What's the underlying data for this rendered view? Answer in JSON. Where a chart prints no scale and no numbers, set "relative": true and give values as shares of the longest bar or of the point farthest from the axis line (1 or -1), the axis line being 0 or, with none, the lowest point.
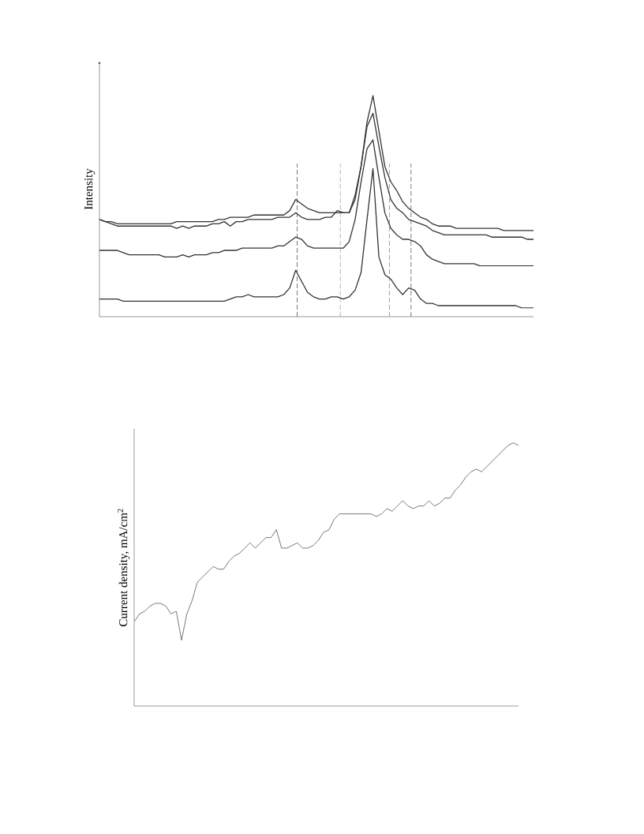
{
  "chart_data": [
    {
      "type": "line",
      "ylabel": "Intensity",
      "relative": true,
      "categories": [
        null,
        null,
        null,
        null,
        null,
        null,
        null,
        null,
        null,
        null,
        null,
        null,
        null,
        null,
        null,
        null,
        null,
        null,
        null,
        null,
        null,
        null,
        null,
        null,
        null,
        null,
        null,
        null,
        null,
        null,
        null,
        null,
        null,
        null,
        null,
        null,
        null,
        null,
        null,
        null,
        null,
        null,
        null,
        null,
        null,
        null,
        null,
        null,
        null,
        null,
        null,
        null,
        null,
        null,
        null,
        null,
        null,
        null,
        null,
        null,
        null,
        null,
        null,
        null,
        null,
        null,
        null,
        null,
        null,
        null,
        null,
        null,
        null,
        null
      ],
      "series": [
        {
          "color": "#333333",
          "values": [
            0.44,
            0.43,
            0.43,
            0.42,
            0.42,
            0.42,
            0.42,
            0.42,
            0.42,
            0.42,
            0.42,
            0.42,
            0.42,
            0.43,
            0.43,
            0.43,
            0.43,
            0.43,
            0.43,
            0.43,
            0.44,
            0.44,
            0.45,
            0.45,
            0.45,
            0.45,
            0.46,
            0.46,
            0.46,
            0.46,
            0.46,
            0.46,
            0.48,
            0.53,
            0.51,
            0.49,
            0.48,
            0.47,
            0.47,
            0.47,
            0.47,
            0.47,
            0.47,
            0.55,
            0.68,
            0.88,
            1.0,
            0.84,
            0.68,
            0.61,
            0.57,
            0.52,
            0.49,
            0.47,
            0.45,
            0.44,
            0.42,
            0.41,
            0.41,
            0.41,
            0.4,
            0.4,
            0.4,
            0.4,
            0.4,
            0.4,
            0.4,
            0.4,
            0.39,
            0.39,
            0.39,
            0.39,
            0.39,
            0.39
          ]
        },
        {
          "color": "#333333",
          "values": [
            0.44,
            0.43,
            0.42,
            0.41,
            0.41,
            0.41,
            0.41,
            0.41,
            0.41,
            0.41,
            0.41,
            0.41,
            0.41,
            0.4,
            0.41,
            0.4,
            0.41,
            0.41,
            0.41,
            0.42,
            0.42,
            0.43,
            0.41,
            0.43,
            0.43,
            0.44,
            0.44,
            0.44,
            0.44,
            0.44,
            0.45,
            0.45,
            0.45,
            0.47,
            0.45,
            0.44,
            0.44,
            0.44,
            0.45,
            0.45,
            0.48,
            0.47,
            0.47,
            0.53,
            0.68,
            0.86,
            0.92,
            0.77,
            0.63,
            0.53,
            0.49,
            0.47,
            0.44,
            0.43,
            0.42,
            0.41,
            0.39,
            0.38,
            0.37,
            0.37,
            0.37,
            0.37,
            0.37,
            0.37,
            0.37,
            0.37,
            0.36,
            0.36,
            0.36,
            0.36,
            0.36,
            0.36,
            0.35,
            0.35
          ]
        },
        {
          "color": "#333333",
          "values": [
            0.3,
            0.3,
            0.3,
            0.3,
            0.29,
            0.28,
            0.28,
            0.28,
            0.28,
            0.28,
            0.28,
            0.27,
            0.27,
            0.27,
            0.28,
            0.27,
            0.28,
            0.28,
            0.28,
            0.29,
            0.29,
            0.3,
            0.3,
            0.3,
            0.31,
            0.31,
            0.31,
            0.31,
            0.31,
            0.31,
            0.32,
            0.32,
            0.34,
            0.36,
            0.35,
            0.32,
            0.31,
            0.31,
            0.31,
            0.31,
            0.31,
            0.31,
            0.34,
            0.44,
            0.61,
            0.76,
            0.8,
            0.63,
            0.47,
            0.4,
            0.37,
            0.35,
            0.35,
            0.34,
            0.32,
            0.28,
            0.26,
            0.25,
            0.24,
            0.24,
            0.24,
            0.24,
            0.24,
            0.24,
            0.23,
            0.23,
            0.23,
            0.23,
            0.23,
            0.23,
            0.23,
            0.23,
            0.23,
            0.23
          ]
        },
        {
          "color": "#333333",
          "values": [
            0.08,
            0.08,
            0.08,
            0.08,
            0.07,
            0.07,
            0.07,
            0.07,
            0.07,
            0.07,
            0.07,
            0.07,
            0.07,
            0.07,
            0.07,
            0.07,
            0.07,
            0.07,
            0.07,
            0.07,
            0.07,
            0.07,
            0.08,
            0.09,
            0.09,
            0.1,
            0.09,
            0.09,
            0.09,
            0.09,
            0.09,
            0.1,
            0.13,
            0.21,
            0.16,
            0.11,
            0.09,
            0.08,
            0.08,
            0.09,
            0.09,
            0.08,
            0.09,
            0.12,
            0.2,
            0.44,
            0.67,
            0.27,
            0.19,
            0.17,
            0.13,
            0.1,
            0.13,
            0.12,
            0.08,
            0.06,
            0.06,
            0.05,
            0.05,
            0.05,
            0.05,
            0.05,
            0.05,
            0.05,
            0.05,
            0.05,
            0.05,
            0.05,
            0.05,
            0.05,
            0.05,
            0.04,
            0.04,
            0.04
          ]
        }
      ]
    },
    {
      "type": "line",
      "ylabel": "Current density, mA/cm$^{2}$",
      "relative": true,
      "categories": [
        null,
        null,
        null,
        null,
        null,
        null,
        null,
        null,
        null,
        null,
        null,
        null,
        null,
        null,
        null,
        null,
        null,
        null,
        null,
        null,
        null,
        null,
        null,
        null,
        null,
        null,
        null,
        null,
        null,
        null,
        null,
        null,
        null,
        null,
        null,
        null,
        null,
        null,
        null,
        null,
        null,
        null,
        null,
        null,
        null,
        null,
        null,
        null,
        null,
        null,
        null,
        null,
        null,
        null,
        null,
        null,
        null,
        null,
        null,
        null,
        null,
        null,
        null,
        null,
        null,
        null,
        null,
        null,
        null,
        null,
        null,
        null,
        null,
        null
      ],
      "series": [
        {
          "color": "#555555",
          "values": [
            0.32,
            0.35,
            0.36,
            0.38,
            0.39,
            0.39,
            0.38,
            0.35,
            0.36,
            0.25,
            0.35,
            0.4,
            0.47,
            0.49,
            0.51,
            0.53,
            0.52,
            0.52,
            0.55,
            0.57,
            0.58,
            0.6,
            0.62,
            0.6,
            0.62,
            0.64,
            0.64,
            0.67,
            0.6,
            0.6,
            0.61,
            0.62,
            0.6,
            0.6,
            0.61,
            0.63,
            0.66,
            0.67,
            0.71,
            0.73,
            0.73,
            0.73,
            0.73,
            0.73,
            0.73,
            0.73,
            0.72,
            0.73,
            0.75,
            0.74,
            0.76,
            0.78,
            0.76,
            0.75,
            0.76,
            0.76,
            0.78,
            0.76,
            0.77,
            0.79,
            0.79,
            0.82,
            0.84,
            0.87,
            0.89,
            0.9,
            0.89,
            0.91,
            0.93,
            0.95,
            0.97,
            0.99,
            1.0,
            0.99
          ]
        }
      ]
    }
  ]
}
